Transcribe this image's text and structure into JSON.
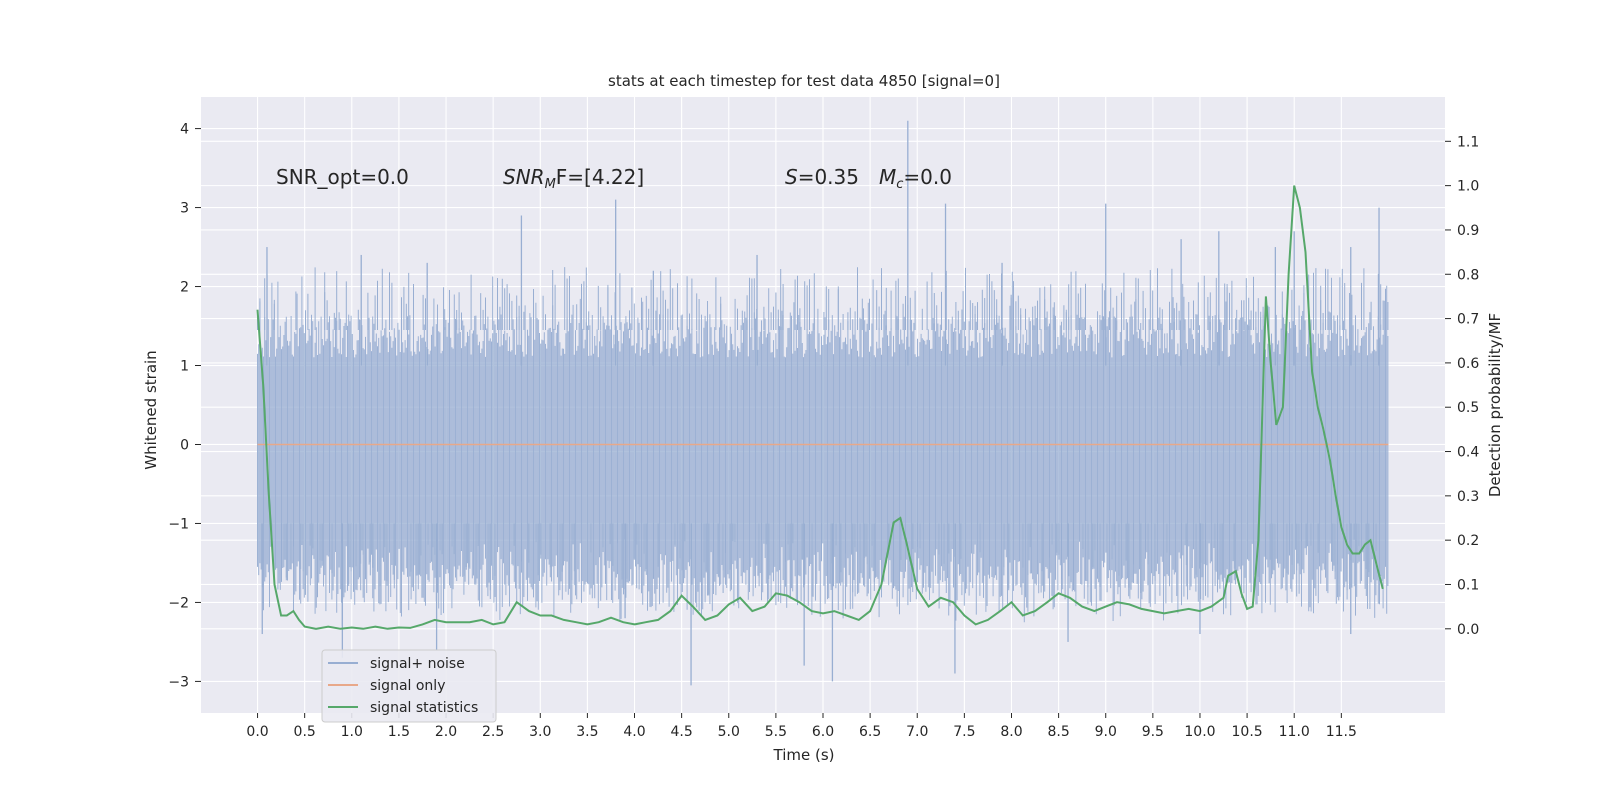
{
  "chart_data": {
    "type": "line",
    "title": "stats at each timestep for test data 4850 [signal=0]",
    "xlabel": "Time (s)",
    "ylabel": "Whitened strain",
    "ylabel_right": "Detection probability/MF",
    "xlim": [
      -0.6,
      12.6
    ],
    "ylim": [
      -3.4,
      4.4
    ],
    "ylim_right": [
      -0.19,
      1.2
    ],
    "grid": true,
    "x_ticks": [
      0.0,
      0.5,
      1.0,
      1.5,
      2.0,
      2.5,
      3.0,
      3.5,
      4.0,
      4.5,
      5.0,
      5.5,
      6.0,
      6.5,
      7.0,
      7.5,
      8.0,
      8.5,
      9.0,
      9.5,
      10.0,
      10.5,
      11.0,
      11.5
    ],
    "x_tick_labels": [
      "0.0",
      "0.5",
      "1.0",
      "1.5",
      "2.0",
      "2.5",
      "3.0",
      "3.5",
      "4.0",
      "4.5",
      "5.0",
      "5.5",
      "6.0",
      "6.5",
      "7.0",
      "7.5",
      "8.0",
      "8.5",
      "9.0",
      "9.5",
      "10.0",
      "10.5",
      "11.0",
      "11.5"
    ],
    "y_ticks": [
      -3,
      -2,
      -1,
      0,
      1,
      2,
      3,
      4
    ],
    "y_tick_labels": [
      "−3",
      "−2",
      "−1",
      "0",
      "1",
      "2",
      "3",
      "4"
    ],
    "y_right_ticks": [
      0.0,
      0.1,
      0.2,
      0.3,
      0.4,
      0.5,
      0.6,
      0.7,
      0.8,
      0.9,
      1.0,
      1.1
    ],
    "y_right_tick_labels": [
      "0.0",
      "0.1",
      "0.2",
      "0.3",
      "0.4",
      "0.5",
      "0.6",
      "0.7",
      "0.8",
      "0.9",
      "1.0",
      "1.1"
    ],
    "annotations": {
      "snr_opt": "SNR_opt=0.0",
      "snr_mf": "SNR",
      "snr_mf_sub": "M",
      "snr_mf_tail": "F=[4.22]",
      "s_label": "S",
      "s_value": "=0.35",
      "mc_label": "M",
      "mc_sub": "c",
      "mc_value": "=0.0"
    },
    "legend": {
      "placement": "lower-left",
      "entries": [
        "signal+ noise",
        "signal only",
        "signal statistics"
      ]
    },
    "noise_band": {
      "name": "signal+ noise",
      "x_range": [
        0.0,
        12.0
      ],
      "typical_range": [
        -1.2,
        1.65
      ],
      "upper_spikes": [
        [
          0.1,
          2.5
        ],
        [
          1.1,
          2.4
        ],
        [
          2.8,
          2.9
        ],
        [
          3.8,
          3.1
        ],
        [
          6.9,
          4.1
        ],
        [
          7.3,
          3.05
        ],
        [
          9.0,
          3.05
        ],
        [
          10.2,
          2.7
        ],
        [
          11.0,
          2.7
        ],
        [
          11.9,
          3.0
        ],
        [
          5.3,
          2.4
        ],
        [
          7.9,
          2.3
        ],
        [
          4.2,
          2.2
        ],
        [
          1.8,
          2.3
        ],
        [
          9.8,
          2.6
        ],
        [
          10.8,
          2.5
        ],
        [
          11.6,
          2.5
        ]
      ],
      "lower_spikes": [
        [
          0.05,
          -2.4
        ],
        [
          0.9,
          -2.7
        ],
        [
          1.9,
          -2.6
        ],
        [
          4.6,
          -3.05
        ],
        [
          5.8,
          -2.8
        ],
        [
          6.1,
          -3.0
        ],
        [
          7.4,
          -2.9
        ],
        [
          10.0,
          -2.4
        ],
        [
          11.6,
          -2.4
        ],
        [
          3.9,
          -2.2
        ],
        [
          8.6,
          -2.5
        ],
        [
          0.9,
          -2.3
        ]
      ],
      "color": "#98aed2"
    },
    "series": [
      {
        "name": "signal only",
        "axis": "left",
        "color": "#e8a889",
        "x": [
          0.0,
          12.0
        ],
        "y": [
          0.0,
          0.0
        ]
      },
      {
        "name": "signal statistics",
        "axis": "right",
        "color": "#56a86a",
        "x": [
          0.0,
          0.06,
          0.12,
          0.18,
          0.25,
          0.31,
          0.38,
          0.44,
          0.5,
          0.62,
          0.75,
          0.88,
          1.0,
          1.12,
          1.25,
          1.38,
          1.5,
          1.62,
          1.75,
          1.88,
          2.0,
          2.12,
          2.25,
          2.38,
          2.5,
          2.62,
          2.75,
          2.88,
          3.0,
          3.12,
          3.25,
          3.38,
          3.5,
          3.62,
          3.75,
          3.88,
          4.0,
          4.12,
          4.25,
          4.38,
          4.5,
          4.62,
          4.75,
          4.88,
          5.0,
          5.12,
          5.25,
          5.38,
          5.5,
          5.62,
          5.75,
          5.88,
          6.0,
          6.12,
          6.25,
          6.38,
          6.5,
          6.62,
          6.75,
          6.82,
          6.88,
          7.0,
          7.12,
          7.25,
          7.38,
          7.5,
          7.62,
          7.75,
          7.88,
          8.0,
          8.12,
          8.25,
          8.38,
          8.5,
          8.62,
          8.75,
          8.88,
          9.0,
          9.12,
          9.25,
          9.38,
          9.5,
          9.62,
          9.75,
          9.88,
          10.0,
          10.12,
          10.25,
          10.3,
          10.38,
          10.44,
          10.5,
          10.56,
          10.62,
          10.7,
          10.75,
          10.81,
          10.88,
          10.94,
          11.0,
          11.06,
          11.12,
          11.19,
          11.25,
          11.31,
          11.38,
          11.44,
          11.5,
          11.56,
          11.62,
          11.69,
          11.75,
          11.81,
          11.88,
          11.94
        ],
        "y": [
          0.72,
          0.55,
          0.3,
          0.1,
          0.03,
          0.03,
          0.04,
          0.02,
          0.005,
          0.0,
          0.005,
          0.0,
          0.003,
          0.0,
          0.005,
          0.0,
          0.003,
          0.002,
          0.01,
          0.02,
          0.015,
          0.015,
          0.015,
          0.02,
          0.01,
          0.015,
          0.06,
          0.04,
          0.03,
          0.03,
          0.02,
          0.015,
          0.01,
          0.015,
          0.025,
          0.015,
          0.01,
          0.015,
          0.02,
          0.04,
          0.075,
          0.05,
          0.02,
          0.03,
          0.055,
          0.07,
          0.04,
          0.05,
          0.08,
          0.075,
          0.06,
          0.04,
          0.035,
          0.04,
          0.03,
          0.02,
          0.04,
          0.1,
          0.24,
          0.25,
          0.2,
          0.09,
          0.05,
          0.07,
          0.06,
          0.03,
          0.01,
          0.02,
          0.04,
          0.06,
          0.03,
          0.04,
          0.06,
          0.08,
          0.07,
          0.05,
          0.04,
          0.05,
          0.06,
          0.055,
          0.045,
          0.04,
          0.035,
          0.04,
          0.045,
          0.04,
          0.05,
          0.07,
          0.12,
          0.13,
          0.08,
          0.045,
          0.05,
          0.2,
          0.75,
          0.6,
          0.46,
          0.5,
          0.8,
          1.0,
          0.95,
          0.85,
          0.58,
          0.5,
          0.45,
          0.38,
          0.3,
          0.23,
          0.19,
          0.17,
          0.17,
          0.19,
          0.2,
          0.14,
          0.09
        ]
      }
    ]
  }
}
